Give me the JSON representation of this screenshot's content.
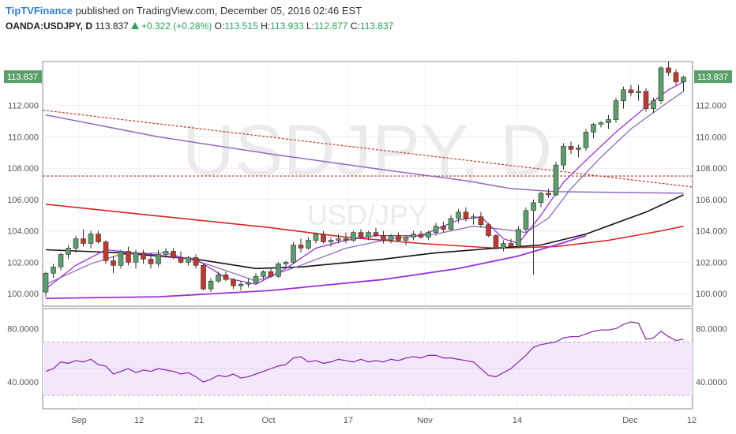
{
  "header": {
    "author": "TipTVFinance",
    "published_text": "published on TradingView.com, December 05, 2016 02:46 EST",
    "symbol": "OANDA:USDJPY, D",
    "last": "113.837",
    "change": "+0.322 (+0.28%)",
    "o_label": "O:",
    "o_value": "113.515",
    "h_label": "H:",
    "h_value": "113.933",
    "l_label": "L:",
    "l_value": "112.877",
    "c_label": "C:",
    "c_value": "113.837"
  },
  "watermark": {
    "main": "USDJPY, D",
    "sub": "USD/JPY"
  },
  "colors": {
    "up": "#5a9f6a",
    "down": "#c0392b",
    "ma_black": "#111111",
    "ma_red": "#e02020",
    "ma_purple": "#9b30d9",
    "ma_lavender": "#8e6bbf",
    "rsi": "#8e2fae",
    "badge": "#5a9f6a"
  },
  "chart_data": [
    {
      "type": "candlestick",
      "price_ticks": [
        "100.000",
        "102.000",
        "104.000",
        "106.000",
        "108.000",
        "110.000",
        "112.000"
      ],
      "ylim": [
        99.2,
        114.8
      ],
      "last_price_badge": "113.837",
      "x_tick_labels": [
        "Sep",
        "12",
        "21",
        "Oct",
        "17",
        "Nov",
        "14",
        "Dec",
        "12"
      ],
      "candles": [
        [
          100.1,
          101.4,
          99.8,
          101.3
        ],
        [
          101.3,
          101.9,
          101.0,
          101.7
        ],
        [
          101.7,
          102.6,
          101.5,
          102.5
        ],
        [
          102.5,
          103.1,
          102.2,
          102.9
        ],
        [
          102.9,
          103.7,
          102.6,
          103.5
        ],
        [
          103.5,
          104.1,
          103.0,
          103.2
        ],
        [
          103.2,
          104.0,
          102.9,
          103.8
        ],
        [
          103.8,
          104.0,
          103.2,
          103.3
        ],
        [
          103.3,
          103.4,
          101.9,
          102.1
        ],
        [
          102.1,
          102.4,
          101.3,
          101.8
        ],
        [
          101.8,
          102.8,
          101.6,
          102.7
        ],
        [
          102.7,
          103.0,
          101.8,
          102.0
        ],
        [
          102.0,
          102.8,
          101.6,
          102.6
        ],
        [
          102.6,
          102.8,
          101.9,
          102.2
        ],
        [
          102.2,
          102.6,
          101.6,
          101.9
        ],
        [
          101.9,
          102.8,
          101.7,
          102.5
        ],
        [
          102.5,
          102.9,
          102.3,
          102.7
        ],
        [
          102.7,
          102.9,
          102.2,
          102.3
        ],
        [
          102.3,
          102.7,
          101.9,
          102.0
        ],
        [
          102.0,
          102.4,
          101.8,
          102.3
        ],
        [
          102.3,
          102.5,
          101.6,
          101.8
        ],
        [
          101.8,
          101.9,
          100.2,
          100.3
        ],
        [
          100.3,
          101.0,
          100.1,
          100.8
        ],
        [
          100.8,
          101.4,
          100.7,
          101.2
        ],
        [
          101.2,
          101.4,
          100.8,
          100.9
        ],
        [
          100.9,
          101.0,
          100.3,
          100.5
        ],
        [
          100.5,
          100.8,
          100.2,
          100.6
        ],
        [
          100.6,
          101.0,
          100.4,
          100.7
        ],
        [
          100.7,
          101.3,
          100.6,
          101.1
        ],
        [
          101.1,
          101.5,
          100.9,
          101.4
        ],
        [
          101.4,
          101.6,
          101.0,
          101.1
        ],
        [
          101.1,
          102.0,
          101.0,
          101.9
        ],
        [
          101.9,
          102.1,
          101.7,
          102.0
        ],
        [
          102.0,
          103.3,
          101.9,
          103.1
        ],
        [
          103.1,
          103.5,
          102.6,
          102.9
        ],
        [
          102.9,
          103.6,
          102.8,
          103.4
        ],
        [
          103.4,
          103.9,
          103.2,
          103.8
        ],
        [
          103.8,
          104.0,
          103.2,
          103.3
        ],
        [
          103.3,
          103.6,
          103.0,
          103.4
        ],
        [
          103.4,
          103.8,
          103.2,
          103.5
        ],
        [
          103.5,
          103.9,
          103.2,
          103.4
        ],
        [
          103.4,
          104.0,
          103.3,
          103.9
        ],
        [
          103.9,
          104.1,
          103.5,
          103.6
        ],
        [
          103.6,
          104.0,
          103.4,
          103.9
        ],
        [
          103.9,
          104.2,
          103.6,
          103.7
        ],
        [
          103.7,
          104.0,
          103.2,
          103.4
        ],
        [
          103.4,
          103.8,
          103.2,
          103.7
        ],
        [
          103.7,
          103.9,
          103.3,
          103.4
        ],
        [
          103.4,
          103.7,
          103.1,
          103.6
        ],
        [
          103.6,
          104.0,
          103.4,
          103.8
        ],
        [
          103.8,
          104.0,
          103.5,
          103.6
        ],
        [
          103.6,
          104.0,
          103.4,
          103.9
        ],
        [
          103.9,
          104.5,
          103.7,
          104.3
        ],
        [
          104.3,
          104.6,
          103.9,
          104.1
        ],
        [
          104.1,
          105.0,
          104.0,
          104.8
        ],
        [
          104.8,
          105.4,
          104.5,
          105.2
        ],
        [
          105.2,
          105.5,
          104.6,
          104.8
        ],
        [
          104.8,
          105.1,
          104.4,
          104.9
        ],
        [
          104.9,
          105.2,
          104.2,
          104.4
        ],
        [
          104.4,
          104.5,
          103.6,
          103.7
        ],
        [
          103.7,
          103.8,
          102.8,
          102.9
        ],
        [
          102.9,
          103.4,
          102.7,
          103.2
        ],
        [
          103.2,
          103.5,
          102.9,
          103.0
        ],
        [
          103.0,
          104.3,
          102.9,
          104.1
        ],
        [
          104.1,
          105.5,
          103.9,
          105.3
        ],
        [
          105.3,
          106.0,
          101.2,
          105.8
        ],
        [
          105.8,
          106.5,
          105.5,
          106.4
        ],
        [
          106.4,
          106.7,
          106.1,
          106.3
        ],
        [
          106.3,
          108.4,
          106.2,
          108.2
        ],
        [
          108.2,
          109.6,
          107.9,
          109.4
        ],
        [
          109.4,
          109.7,
          108.9,
          109.2
        ],
        [
          109.2,
          109.5,
          108.7,
          109.3
        ],
        [
          109.3,
          110.5,
          109.1,
          110.3
        ],
        [
          110.3,
          110.9,
          109.9,
          110.8
        ],
        [
          110.8,
          111.0,
          110.6,
          110.9
        ],
        [
          110.9,
          111.4,
          110.5,
          111.1
        ],
        [
          111.1,
          112.5,
          110.9,
          112.3
        ],
        [
          112.3,
          113.2,
          111.8,
          113.0
        ],
        [
          113.0,
          113.3,
          112.6,
          112.8
        ],
        [
          112.8,
          113.3,
          112.3,
          112.9
        ],
        [
          112.9,
          113.1,
          111.6,
          111.8
        ],
        [
          111.8,
          112.5,
          111.5,
          112.3
        ],
        [
          112.3,
          114.5,
          112.1,
          114.4
        ],
        [
          114.4,
          114.8,
          113.9,
          114.1
        ],
        [
          114.1,
          114.3,
          113.3,
          113.5
        ],
        [
          113.5,
          113.9,
          112.9,
          113.8
        ]
      ],
      "ma_black": [
        [
          0,
          102.8
        ],
        [
          10,
          102.6
        ],
        [
          20,
          102.2
        ],
        [
          28,
          101.6
        ],
        [
          34,
          101.7
        ],
        [
          45,
          102.2
        ],
        [
          52,
          102.6
        ],
        [
          60,
          102.9
        ],
        [
          66,
          103.1
        ],
        [
          72,
          103.8
        ],
        [
          80,
          105.2
        ],
        [
          85,
          106.3
        ]
      ],
      "ma_red": [
        [
          0,
          105.7
        ],
        [
          10,
          105.2
        ],
        [
          20,
          104.7
        ],
        [
          30,
          104.2
        ],
        [
          40,
          103.6
        ],
        [
          50,
          103.2
        ],
        [
          60,
          102.9
        ],
        [
          68,
          103.0
        ],
        [
          75,
          103.4
        ],
        [
          82,
          104.0
        ],
        [
          85,
          104.3
        ]
      ],
      "ma_purple": [
        [
          0,
          99.7
        ],
        [
          15,
          99.8
        ],
        [
          30,
          100.2
        ],
        [
          45,
          100.9
        ],
        [
          55,
          101.6
        ],
        [
          63,
          102.4
        ],
        [
          68,
          103.1
        ],
        [
          72,
          103.7
        ]
      ],
      "ma_lavender": [
        [
          0,
          111.4
        ],
        [
          15,
          110.0
        ],
        [
          30,
          108.9
        ],
        [
          45,
          107.9
        ],
        [
          56,
          107.2
        ],
        [
          62,
          106.7
        ],
        [
          68,
          106.5
        ],
        [
          85,
          106.4
        ]
      ],
      "ema_fast": [
        [
          0,
          100.3
        ],
        [
          4,
          101.8
        ],
        [
          8,
          102.8
        ],
        [
          12,
          102.6
        ],
        [
          16,
          102.4
        ],
        [
          20,
          102.2
        ],
        [
          24,
          101.0
        ],
        [
          28,
          100.6
        ],
        [
          32,
          101.6
        ],
        [
          36,
          102.9
        ],
        [
          40,
          103.4
        ],
        [
          44,
          103.7
        ],
        [
          50,
          103.7
        ],
        [
          55,
          104.7
        ],
        [
          58,
          104.9
        ],
        [
          61,
          103.5
        ],
        [
          63,
          103.2
        ],
        [
          66,
          105.0
        ],
        [
          69,
          107.1
        ],
        [
          72,
          108.5
        ],
        [
          76,
          110.3
        ],
        [
          80,
          111.9
        ],
        [
          83,
          113.0
        ],
        [
          85,
          113.5
        ]
      ],
      "ema_slow": [
        [
          0,
          100.6
        ],
        [
          6,
          101.9
        ],
        [
          10,
          102.5
        ],
        [
          16,
          102.6
        ],
        [
          22,
          101.8
        ],
        [
          28,
          100.8
        ],
        [
          34,
          101.8
        ],
        [
          40,
          102.9
        ],
        [
          46,
          103.5
        ],
        [
          52,
          103.8
        ],
        [
          57,
          104.3
        ],
        [
          61,
          104.1
        ],
        [
          64,
          103.9
        ],
        [
          67,
          104.8
        ],
        [
          70,
          106.7
        ],
        [
          74,
          108.7
        ],
        [
          78,
          110.5
        ],
        [
          82,
          111.9
        ],
        [
          85,
          112.9
        ]
      ],
      "resistance_dotted": [
        [
          0,
          111.7
        ],
        [
          85,
          106.8
        ]
      ],
      "horizontal_dotted": 107.5
    },
    {
      "type": "line",
      "name": "",
      "ylim": [
        20,
        95
      ],
      "ticks": [
        "40.0000",
        "80.0000"
      ],
      "band": [
        30,
        70
      ],
      "values": [
        48,
        50,
        55,
        54,
        56,
        55,
        57,
        53,
        52,
        46,
        48,
        50,
        47,
        49,
        48,
        50,
        49,
        48,
        46,
        47,
        44,
        40,
        42,
        45,
        44,
        46,
        43,
        44,
        46,
        48,
        50,
        52,
        53,
        58,
        59,
        55,
        56,
        54,
        55,
        57,
        56,
        55,
        57,
        55,
        56,
        55,
        57,
        56,
        58,
        59,
        58,
        60,
        60,
        58,
        58,
        57,
        56,
        55,
        50,
        45,
        44,
        47,
        50,
        55,
        60,
        66,
        68,
        69,
        70,
        73,
        74,
        74,
        76,
        78,
        79,
        79,
        80,
        83,
        85,
        84,
        72,
        73,
        78,
        74,
        71,
        72
      ]
    }
  ]
}
